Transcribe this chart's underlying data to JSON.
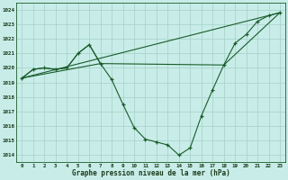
{
  "xlabel": "Graphe pression niveau de la mer (hPa)",
  "background_color": "#c8ede8",
  "grid_color": "#a8d4cc",
  "line_color": "#1a5c2a",
  "xlim": [
    -0.5,
    23.5
  ],
  "ylim": [
    1013.5,
    1024.5
  ],
  "yticks": [
    1014,
    1015,
    1016,
    1017,
    1018,
    1019,
    1020,
    1021,
    1022,
    1023,
    1024
  ],
  "xticks": [
    0,
    1,
    2,
    3,
    4,
    5,
    6,
    7,
    8,
    9,
    10,
    11,
    12,
    13,
    14,
    15,
    16,
    17,
    18,
    19,
    20,
    21,
    22,
    23
  ],
  "series_main": {
    "x": [
      0,
      1,
      2,
      3,
      4,
      5,
      6,
      7,
      8,
      9,
      10,
      11,
      12,
      13,
      14,
      15,
      16,
      17,
      18,
      19,
      20,
      21,
      22,
      23
    ],
    "y": [
      1019.3,
      1019.9,
      1020.0,
      1019.9,
      1020.0,
      1021.0,
      1021.6,
      1020.3,
      1019.2,
      1017.5,
      1015.9,
      1015.1,
      1014.9,
      1014.7,
      1014.0,
      1014.5,
      1016.7,
      1018.5,
      1020.2,
      1021.7,
      1022.3,
      1023.2,
      1023.6,
      1023.8
    ]
  },
  "series_spike": {
    "x": [
      0,
      1,
      2,
      3,
      4,
      5,
      6,
      7
    ],
    "y": [
      1019.3,
      1019.9,
      1020.0,
      1019.9,
      1020.0,
      1021.0,
      1021.6,
      1020.3
    ]
  },
  "series_flat": {
    "x": [
      0,
      7,
      18,
      23
    ],
    "y": [
      1019.3,
      1020.3,
      1020.2,
      1023.8
    ]
  },
  "series_diagonal": {
    "x": [
      0,
      23
    ],
    "y": [
      1019.3,
      1023.8
    ]
  }
}
